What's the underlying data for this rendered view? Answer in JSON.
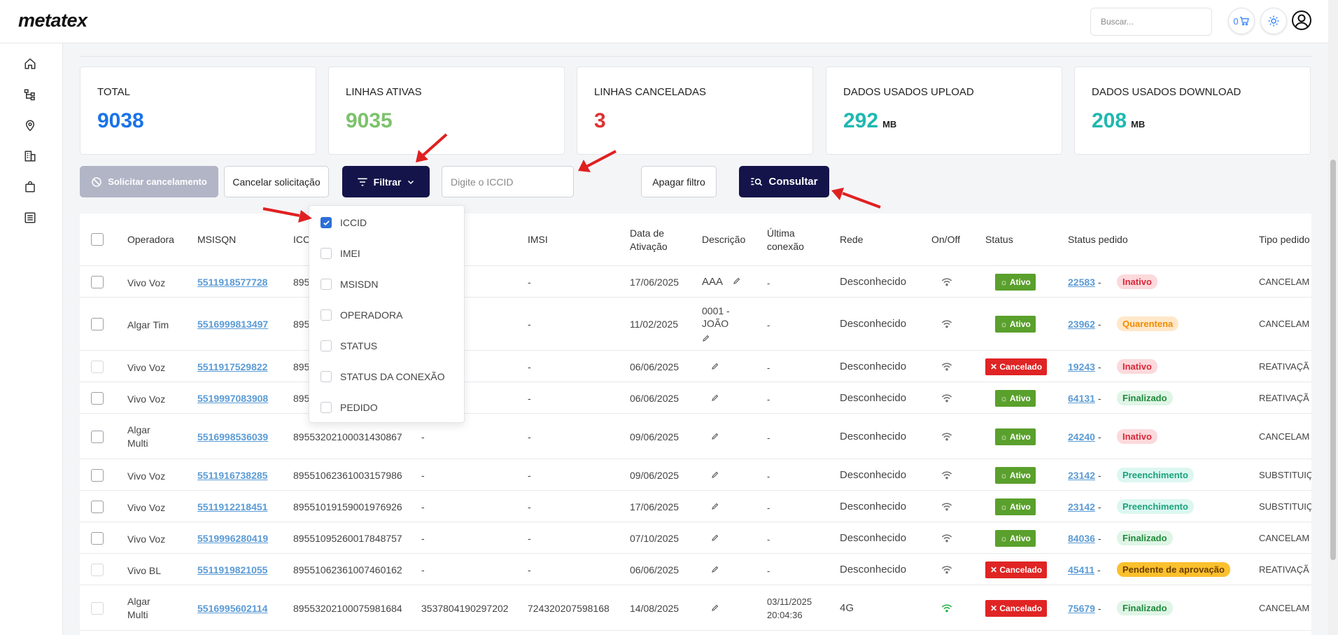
{
  "header": {
    "logo": "metatex",
    "search_placeholder": "Buscar...",
    "cart_count": "0"
  },
  "sidebar": {
    "items": [
      "home-icon",
      "hierarchy-icon",
      "location-pin-icon",
      "building-icon",
      "shopping-bag-icon",
      "list-document-icon"
    ]
  },
  "stats": [
    {
      "label": "TOTAL",
      "value": "9038",
      "unit": "",
      "color": "#1a73e8"
    },
    {
      "label": "LINHAS ATIVAS",
      "value": "9035",
      "unit": "",
      "color": "#7cc26b"
    },
    {
      "label": "LINHAS CANCELADAS",
      "value": "3",
      "unit": "",
      "color": "#e03131"
    },
    {
      "label": "DADOS USADOS UPLOAD",
      "value": "292",
      "unit": "MB",
      "color": "#1fb8b0"
    },
    {
      "label": "DADOS USADOS DOWNLOAD",
      "value": "208",
      "unit": "MB",
      "color": "#1fb8b0"
    }
  ],
  "toolbar": {
    "solicitar_label": "Solicitar cancelamento",
    "cancelar_label": "Cancelar solicitação",
    "filtrar_label": "Filtrar",
    "iccid_placeholder": "Digite o ICCID",
    "apagar_label": "Apagar filtro",
    "consultar_label": "Consultar"
  },
  "filter_options": [
    {
      "label": "ICCID",
      "checked": true
    },
    {
      "label": "IMEI",
      "checked": false
    },
    {
      "label": "MSISDN",
      "checked": false
    },
    {
      "label": "OPERADORA",
      "checked": false
    },
    {
      "label": "STATUS",
      "checked": false
    },
    {
      "label": "STATUS DA CONEXÃO",
      "checked": false
    },
    {
      "label": "PEDIDO",
      "checked": false
    }
  ],
  "table": {
    "headers": {
      "operadora": "Operadora",
      "msisdn": "MSISQN",
      "iccid": "ICCI",
      "imsi": "IMSI",
      "ativacao_1": "Data de",
      "ativacao_2": "Ativação",
      "descricao": "Descrição",
      "ultima_1": "Última",
      "ultima_2": "conexão",
      "rede": "Rede",
      "onoff": "On/Off",
      "status": "Status",
      "status_pedido": "Status pedido",
      "tipo_pedido": "Tipo pedido"
    },
    "rows": [
      {
        "operadora": "Vivo Voz",
        "msisdn": "5511918577728",
        "iccid": "895",
        "imei": "",
        "imsi": "-",
        "ativacao": "17/06/2025",
        "descricao": "AAA",
        "ultima": "-",
        "rede": "Desconhecido",
        "status": "Ativo",
        "pedido": "22583",
        "pedido_status": "Inativo",
        "tipo": "CANCELAM"
      },
      {
        "operadora": "Algar Tim",
        "msisdn": "5516999813497",
        "iccid": "895",
        "imei": "",
        "imsi": "-",
        "ativacao": "11/02/2025",
        "descricao": "0001 - JOÃO",
        "ultima": "-",
        "rede": "Desconhecido",
        "status": "Ativo",
        "pedido": "23962",
        "pedido_status": "Quarentena",
        "tipo": "CANCELAM"
      },
      {
        "operadora": "Vivo Voz",
        "msisdn": "5511917529822",
        "iccid": "895",
        "imei": "",
        "imsi": "-",
        "ativacao": "06/06/2025",
        "descricao": "",
        "ultima": "-",
        "rede": "Desconhecido",
        "status": "Cancelado",
        "pedido": "19243",
        "pedido_status": "Inativo",
        "tipo": "REATIVAÇÃ"
      },
      {
        "operadora": "Vivo Voz",
        "msisdn": "5519997083908",
        "iccid": "895",
        "imei": "",
        "imsi": "-",
        "ativacao": "06/06/2025",
        "descricao": "",
        "ultima": "-",
        "rede": "Desconhecido",
        "status": "Ativo",
        "pedido": "64131",
        "pedido_status": "Finalizado",
        "tipo": "REATIVAÇÃ"
      },
      {
        "operadora": "Algar Multi",
        "msisdn": "5516998536039",
        "iccid": "89553202100031430867",
        "imei": "-",
        "imsi": "-",
        "ativacao": "09/06/2025",
        "descricao": "",
        "ultima": "-",
        "rede": "Desconhecido",
        "status": "Ativo",
        "pedido": "24240",
        "pedido_status": "Inativo",
        "tipo": "CANCELAM"
      },
      {
        "operadora": "Vivo Voz",
        "msisdn": "5511916738285",
        "iccid": "89551062361003157986",
        "imei": "-",
        "imsi": "-",
        "ativacao": "09/06/2025",
        "descricao": "",
        "ultima": "-",
        "rede": "Desconhecido",
        "status": "Ativo",
        "pedido": "23142",
        "pedido_status": "Preenchimento",
        "tipo": "SUBSTITUIÇ"
      },
      {
        "operadora": "Vivo Voz",
        "msisdn": "5511912218451",
        "iccid": "89551019159001976926",
        "imei": "-",
        "imsi": "-",
        "ativacao": "17/06/2025",
        "descricao": "",
        "ultima": "-",
        "rede": "Desconhecido",
        "status": "Ativo",
        "pedido": "23142",
        "pedido_status": "Preenchimento",
        "tipo": "SUBSTITUIÇ"
      },
      {
        "operadora": "Vivo Voz",
        "msisdn": "5519996280419",
        "iccid": "89551095260017848757",
        "imei": "-",
        "imsi": "-",
        "ativacao": "07/10/2025",
        "descricao": "",
        "ultima": "-",
        "rede": "Desconhecido",
        "status": "Ativo",
        "pedido": "84036",
        "pedido_status": "Finalizado",
        "tipo": "CANCELAM"
      },
      {
        "operadora": "Vivo BL",
        "msisdn": "5511919821055",
        "iccid": "89551062361007460162",
        "imei": "-",
        "imsi": "-",
        "ativacao": "06/06/2025",
        "descricao": "",
        "ultima": "-",
        "rede": "Desconhecido",
        "status": "Cancelado",
        "pedido": "45411",
        "pedido_status": "Pendente de aprovação",
        "tipo": "REATIVAÇÃ"
      },
      {
        "operadora": "Algar Multi",
        "msisdn": "5516995602114",
        "iccid": "89553202100075981684",
        "imei": "3537804190297202",
        "imsi": "724320207598168",
        "ativacao": "14/08/2025",
        "descricao": "",
        "ultima": "03/11/2025 20:04:36",
        "rede": "4G",
        "status": "Cancelado",
        "pedido": "75679",
        "pedido_status": "Finalizado",
        "tipo": "CANCELAM"
      }
    ]
  }
}
